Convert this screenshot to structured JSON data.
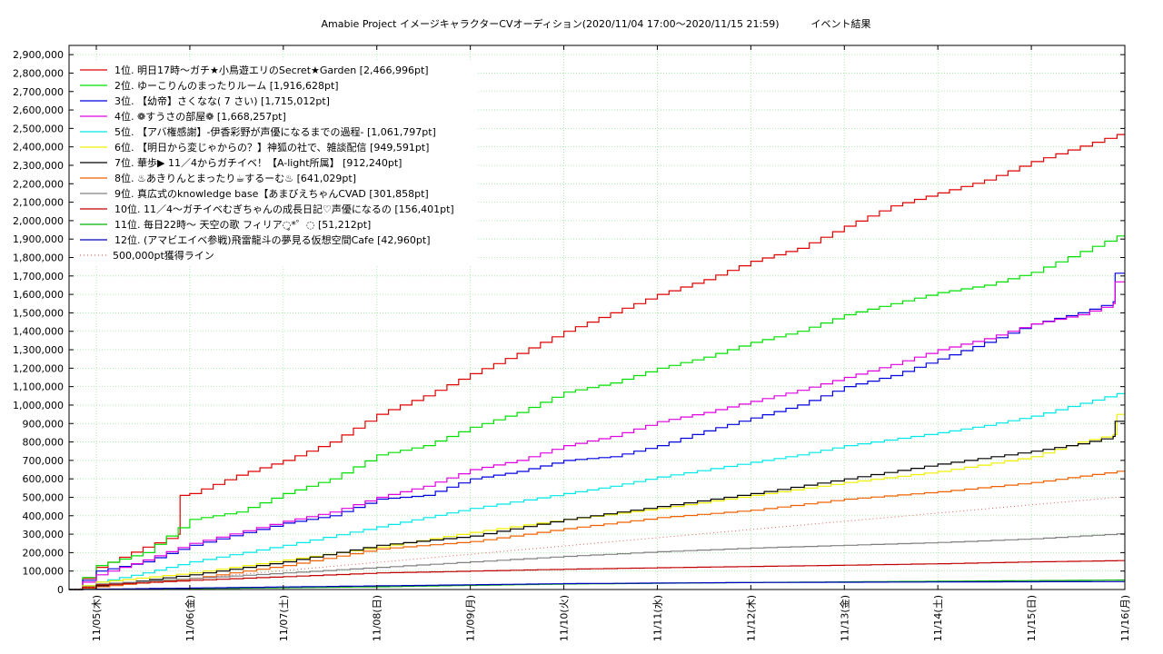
{
  "chart_data": {
    "type": "line",
    "title": "Amabie Project イメージキャラクターCVオーディション(2020/11/04 17:00〜2020/11/15 21:59)          イベント結果",
    "xlabel": "",
    "ylabel": "",
    "x_range": [
      "2020-11-04 17:00",
      "2020-11-16 00:00"
    ],
    "x_ticks": [
      "11/05(木)",
      "11/06(金)",
      "11/07(土)",
      "11/08(日)",
      "11/09(月)",
      "11/10(火)",
      "11/11(水)",
      "11/12(木)",
      "11/13(金)",
      "11/14(土)",
      "11/15(日)",
      "11/16(月)"
    ],
    "ylim": [
      0,
      2950000
    ],
    "y_ticks": [
      0,
      100000,
      200000,
      300000,
      400000,
      500000,
      600000,
      700000,
      800000,
      900000,
      1000000,
      1100000,
      1200000,
      1300000,
      1400000,
      1500000,
      1600000,
      1700000,
      1800000,
      1900000,
      2000000,
      2100000,
      2200000,
      2300000,
      2400000,
      2500000,
      2600000,
      2700000,
      2800000,
      2900000
    ],
    "y_tick_labels": [
      "0",
      "100,000",
      "200,000",
      "300,000",
      "400,000",
      "500,000",
      "600,000",
      "700,000",
      "800,000",
      "900,000",
      "1,000,000",
      "1,100,000",
      "1,200,000",
      "1,300,000",
      "1,400,000",
      "1,500,000",
      "1,600,000",
      "1,700,000",
      "1,800,000",
      "1,900,000",
      "2,000,000",
      "2,100,000",
      "2,200,000",
      "2,300,000",
      "2,400,000",
      "2,500,000",
      "2,600,000",
      "2,700,000",
      "2,800,000",
      "2,900,000"
    ],
    "grid": true,
    "legend_position": "top-left",
    "series": [
      {
        "name": "1位. 明日17時〜ガチ★小鳥遊エリのSecret★Garden [2,466,996pt]",
        "color": "#e00000",
        "points": [
          [
            "2020-11-04 17:00",
            0
          ],
          [
            "2020-11-05 00:00",
            120000
          ],
          [
            "2020-11-05 12:00",
            230000
          ],
          [
            "2020-11-05 21:00",
            300000
          ],
          [
            "2020-11-05 21:30",
            510000
          ],
          [
            "2020-11-06 00:00",
            520000
          ],
          [
            "2020-11-06 12:00",
            620000
          ],
          [
            "2020-11-07 00:00",
            700000
          ],
          [
            "2020-11-07 12:00",
            800000
          ],
          [
            "2020-11-08 00:00",
            950000
          ],
          [
            "2020-11-08 12:00",
            1050000
          ],
          [
            "2020-11-09 00:00",
            1170000
          ],
          [
            "2020-11-09 12:00",
            1280000
          ],
          [
            "2020-11-10 00:00",
            1400000
          ],
          [
            "2020-11-10 12:00",
            1500000
          ],
          [
            "2020-11-11 00:00",
            1600000
          ],
          [
            "2020-11-11 12:00",
            1680000
          ],
          [
            "2020-11-12 00:00",
            1780000
          ],
          [
            "2020-11-12 12:00",
            1850000
          ],
          [
            "2020-11-13 00:00",
            1970000
          ],
          [
            "2020-11-13 12:00",
            2080000
          ],
          [
            "2020-11-14 00:00",
            2150000
          ],
          [
            "2020-11-14 12:00",
            2220000
          ],
          [
            "2020-11-15 00:00",
            2320000
          ],
          [
            "2020-11-15 21:59",
            2466996
          ],
          [
            "2020-11-16 00:00",
            2466996
          ]
        ]
      },
      {
        "name": "2位. ゆーこりんのまったりルーム [1,916,628pt]",
        "color": "#00e000",
        "points": [
          [
            "2020-11-04 17:00",
            0
          ],
          [
            "2020-11-05 00:00",
            130000
          ],
          [
            "2020-11-05 12:00",
            200000
          ],
          [
            "2020-11-06 00:00",
            380000
          ],
          [
            "2020-11-06 12:00",
            420000
          ],
          [
            "2020-11-07 00:00",
            520000
          ],
          [
            "2020-11-07 12:00",
            600000
          ],
          [
            "2020-11-08 00:00",
            730000
          ],
          [
            "2020-11-08 12:00",
            780000
          ],
          [
            "2020-11-09 00:00",
            880000
          ],
          [
            "2020-11-09 12:00",
            960000
          ],
          [
            "2020-11-10 00:00",
            1070000
          ],
          [
            "2020-11-10 12:00",
            1120000
          ],
          [
            "2020-11-11 00:00",
            1200000
          ],
          [
            "2020-11-11 12:00",
            1260000
          ],
          [
            "2020-11-12 00:00",
            1340000
          ],
          [
            "2020-11-12 12:00",
            1400000
          ],
          [
            "2020-11-13 00:00",
            1490000
          ],
          [
            "2020-11-13 12:00",
            1550000
          ],
          [
            "2020-11-14 00:00",
            1610000
          ],
          [
            "2020-11-14 12:00",
            1650000
          ],
          [
            "2020-11-15 00:00",
            1720000
          ],
          [
            "2020-11-15 21:59",
            1916628
          ],
          [
            "2020-11-16 00:00",
            1916628
          ]
        ]
      },
      {
        "name": "3位. 【幼帝】さくなな( 7 さい) [1,715,012pt]",
        "color": "#0000e0",
        "points": [
          [
            "2020-11-04 17:00",
            0
          ],
          [
            "2020-11-05 00:00",
            100000
          ],
          [
            "2020-11-05 12:00",
            150000
          ],
          [
            "2020-11-06 00:00",
            240000
          ],
          [
            "2020-11-07 00:00",
            360000
          ],
          [
            "2020-11-07 12:00",
            400000
          ],
          [
            "2020-11-08 00:00",
            490000
          ],
          [
            "2020-11-08 12:00",
            510000
          ],
          [
            "2020-11-09 00:00",
            600000
          ],
          [
            "2020-11-09 12:00",
            640000
          ],
          [
            "2020-11-10 00:00",
            700000
          ],
          [
            "2020-11-10 12:00",
            720000
          ],
          [
            "2020-11-11 00:00",
            780000
          ],
          [
            "2020-11-11 12:00",
            860000
          ],
          [
            "2020-11-12 00:00",
            930000
          ],
          [
            "2020-11-12 12:00",
            1000000
          ],
          [
            "2020-11-13 00:00",
            1100000
          ],
          [
            "2020-11-13 12:00",
            1160000
          ],
          [
            "2020-11-14 00:00",
            1250000
          ],
          [
            "2020-11-14 12:00",
            1340000
          ],
          [
            "2020-11-15 00:00",
            1440000
          ],
          [
            "2020-11-15 12:00",
            1500000
          ],
          [
            "2020-11-15 21:00",
            1560000
          ],
          [
            "2020-11-15 21:30",
            1715012
          ],
          [
            "2020-11-16 00:00",
            1715012
          ]
        ]
      },
      {
        "name": "4位. ❁すうさの部屋❁ [1,668,257pt]",
        "color": "#e000e0",
        "points": [
          [
            "2020-11-04 17:00",
            0
          ],
          [
            "2020-11-05 00:00",
            80000
          ],
          [
            "2020-11-05 12:00",
            160000
          ],
          [
            "2020-11-06 00:00",
            250000
          ],
          [
            "2020-11-07 00:00",
            370000
          ],
          [
            "2020-11-07 12:00",
            420000
          ],
          [
            "2020-11-08 00:00",
            500000
          ],
          [
            "2020-11-08 12:00",
            560000
          ],
          [
            "2020-11-09 00:00",
            650000
          ],
          [
            "2020-11-09 12:00",
            700000
          ],
          [
            "2020-11-10 00:00",
            780000
          ],
          [
            "2020-11-10 12:00",
            830000
          ],
          [
            "2020-11-11 00:00",
            910000
          ],
          [
            "2020-11-11 12:00",
            960000
          ],
          [
            "2020-11-12 00:00",
            1020000
          ],
          [
            "2020-11-12 12:00",
            1080000
          ],
          [
            "2020-11-13 00:00",
            1150000
          ],
          [
            "2020-11-13 12:00",
            1220000
          ],
          [
            "2020-11-14 00:00",
            1300000
          ],
          [
            "2020-11-14 12:00",
            1360000
          ],
          [
            "2020-11-15 00:00",
            1440000
          ],
          [
            "2020-11-15 12:00",
            1490000
          ],
          [
            "2020-11-15 21:00",
            1550000
          ],
          [
            "2020-11-15 21:30",
            1668257
          ],
          [
            "2020-11-16 00:00",
            1668257
          ]
        ]
      },
      {
        "name": "5位. 【アバ権感謝】-伊香彩野が声優になるまでの過程- [1,061,797pt]",
        "color": "#00e8e8",
        "points": [
          [
            "2020-11-04 17:00",
            0
          ],
          [
            "2020-11-05 00:00",
            40000
          ],
          [
            "2020-11-05 12:00",
            90000
          ],
          [
            "2020-11-06 00:00",
            150000
          ],
          [
            "2020-11-07 00:00",
            240000
          ],
          [
            "2020-11-08 00:00",
            340000
          ],
          [
            "2020-11-08 12:00",
            390000
          ],
          [
            "2020-11-09 00:00",
            440000
          ],
          [
            "2020-11-10 00:00",
            520000
          ],
          [
            "2020-11-10 12:00",
            560000
          ],
          [
            "2020-11-11 00:00",
            610000
          ],
          [
            "2020-11-12 00:00",
            690000
          ],
          [
            "2020-11-12 12:00",
            730000
          ],
          [
            "2020-11-13 00:00",
            780000
          ],
          [
            "2020-11-14 00:00",
            850000
          ],
          [
            "2020-11-14 12:00",
            890000
          ],
          [
            "2020-11-15 00:00",
            940000
          ],
          [
            "2020-11-15 21:59",
            1061797
          ],
          [
            "2020-11-16 00:00",
            1061797
          ]
        ]
      },
      {
        "name": "6位. 【明日から変じゃからの？】神狐の社で、雑談配信 [949,591pt]",
        "color": "#f0f000",
        "points": [
          [
            "2020-11-04 17:00",
            0
          ],
          [
            "2020-11-05 00:00",
            40000
          ],
          [
            "2020-11-06 00:00",
            90000
          ],
          [
            "2020-11-07 00:00",
            160000
          ],
          [
            "2020-11-08 00:00",
            230000
          ],
          [
            "2020-11-09 00:00",
            310000
          ],
          [
            "2020-11-10 00:00",
            380000
          ],
          [
            "2020-11-11 00:00",
            440000
          ],
          [
            "2020-11-12 00:00",
            510000
          ],
          [
            "2020-11-13 00:00",
            580000
          ],
          [
            "2020-11-14 00:00",
            640000
          ],
          [
            "2020-11-15 00:00",
            720000
          ],
          [
            "2020-11-15 12:00",
            800000
          ],
          [
            "2020-11-15 21:00",
            840000
          ],
          [
            "2020-11-15 21:59",
            949591
          ],
          [
            "2020-11-16 00:00",
            949591
          ]
        ]
      },
      {
        "name": "7位. 華歩▶ 11／4からガチイベ！【A-light所属】 [912,240pt]",
        "color": "#000000",
        "points": [
          [
            "2020-11-04 17:00",
            0
          ],
          [
            "2020-11-05 00:00",
            20000
          ],
          [
            "2020-11-06 00:00",
            80000
          ],
          [
            "2020-11-07 00:00",
            150000
          ],
          [
            "2020-11-08 00:00",
            240000
          ],
          [
            "2020-11-09 00:00",
            290000
          ],
          [
            "2020-11-10 00:00",
            380000
          ],
          [
            "2020-11-11 00:00",
            450000
          ],
          [
            "2020-11-12 00:00",
            520000
          ],
          [
            "2020-11-13 00:00",
            600000
          ],
          [
            "2020-11-14 00:00",
            680000
          ],
          [
            "2020-11-15 00:00",
            750000
          ],
          [
            "2020-11-15 12:00",
            790000
          ],
          [
            "2020-11-15 21:00",
            830000
          ],
          [
            "2020-11-15 21:30",
            912240
          ],
          [
            "2020-11-16 00:00",
            912240
          ]
        ]
      },
      {
        "name": "8位. ♨あきりんとまったり☕するーむ♨ [641,029pt]",
        "color": "#f06000",
        "points": [
          [
            "2020-11-04 17:00",
            0
          ],
          [
            "2020-11-05 00:00",
            15000
          ],
          [
            "2020-11-06 00:00",
            60000
          ],
          [
            "2020-11-07 00:00",
            130000
          ],
          [
            "2020-11-08 00:00",
            220000
          ],
          [
            "2020-11-09 00:00",
            260000
          ],
          [
            "2020-11-10 00:00",
            330000
          ],
          [
            "2020-11-11 00:00",
            390000
          ],
          [
            "2020-11-12 00:00",
            430000
          ],
          [
            "2020-11-13 00:00",
            490000
          ],
          [
            "2020-11-14 00:00",
            530000
          ],
          [
            "2020-11-15 00:00",
            580000
          ],
          [
            "2020-11-15 21:59",
            641029
          ],
          [
            "2020-11-16 00:00",
            641029
          ]
        ]
      },
      {
        "name": "9位. 真広式のknowledge base【あまびえちゃんCVAD [301,858pt]",
        "color": "#808080",
        "points": [
          [
            "2020-11-04 17:00",
            0
          ],
          [
            "2020-11-05 00:00",
            30000
          ],
          [
            "2020-11-06 00:00",
            60000
          ],
          [
            "2020-11-07 00:00",
            90000
          ],
          [
            "2020-11-08 00:00",
            120000
          ],
          [
            "2020-11-09 00:00",
            150000
          ],
          [
            "2020-11-10 00:00",
            180000
          ],
          [
            "2020-11-11 00:00",
            205000
          ],
          [
            "2020-11-12 00:00",
            225000
          ],
          [
            "2020-11-13 00:00",
            240000
          ],
          [
            "2020-11-14 00:00",
            255000
          ],
          [
            "2020-11-15 00:00",
            275000
          ],
          [
            "2020-11-15 21:59",
            301858
          ],
          [
            "2020-11-16 00:00",
            301858
          ]
        ]
      },
      {
        "name": "10位. 11／4〜ガチイベむぎちゃんの成長日記♡声優になるの [156,401pt]",
        "color": "#c00000",
        "points": [
          [
            "2020-11-04 17:00",
            0
          ],
          [
            "2020-11-05 00:00",
            25000
          ],
          [
            "2020-11-06 00:00",
            50000
          ],
          [
            "2020-11-07 00:00",
            70000
          ],
          [
            "2020-11-08 00:00",
            90000
          ],
          [
            "2020-11-09 00:00",
            100000
          ],
          [
            "2020-11-10 00:00",
            110000
          ],
          [
            "2020-11-11 00:00",
            118000
          ],
          [
            "2020-11-12 00:00",
            125000
          ],
          [
            "2020-11-13 00:00",
            132000
          ],
          [
            "2020-11-14 00:00",
            140000
          ],
          [
            "2020-11-15 00:00",
            150000
          ],
          [
            "2020-11-15 21:59",
            156401
          ],
          [
            "2020-11-16 00:00",
            156401
          ]
        ]
      },
      {
        "name": "11位. 毎日22時〜 天空の歌 フィリア◌̥*゜◌ [51,212pt]",
        "color": "#00b000",
        "points": [
          [
            "2020-11-04 17:00",
            0
          ],
          [
            "2020-11-06 00:00",
            5000
          ],
          [
            "2020-11-08 00:00",
            15000
          ],
          [
            "2020-11-10 00:00",
            30000
          ],
          [
            "2020-11-12 00:00",
            38000
          ],
          [
            "2020-11-14 00:00",
            45000
          ],
          [
            "2020-11-15 21:59",
            51212
          ],
          [
            "2020-11-16 00:00",
            51212
          ]
        ]
      },
      {
        "name": "12位. (アマビエイベ参戦)飛雷龍斗の夢見る仮想空間Cafe [42,960pt]",
        "color": "#0000c0",
        "points": [
          [
            "2020-11-04 17:00",
            0
          ],
          [
            "2020-11-06 00:00",
            8000
          ],
          [
            "2020-11-08 00:00",
            20000
          ],
          [
            "2020-11-10 00:00",
            32000
          ],
          [
            "2020-11-12 00:00",
            38000
          ],
          [
            "2020-11-14 00:00",
            41000
          ],
          [
            "2020-11-15 21:59",
            42960
          ],
          [
            "2020-11-16 00:00",
            42960
          ]
        ]
      },
      {
        "name": "500,000pt獲得ライン",
        "color": "#e06060",
        "dotted": true,
        "points": [
          [
            "2020-11-04 17:00",
            0
          ],
          [
            "2020-11-15 21:59",
            500000
          ],
          [
            "2020-11-16 00:00",
            500000
          ]
        ]
      }
    ]
  }
}
